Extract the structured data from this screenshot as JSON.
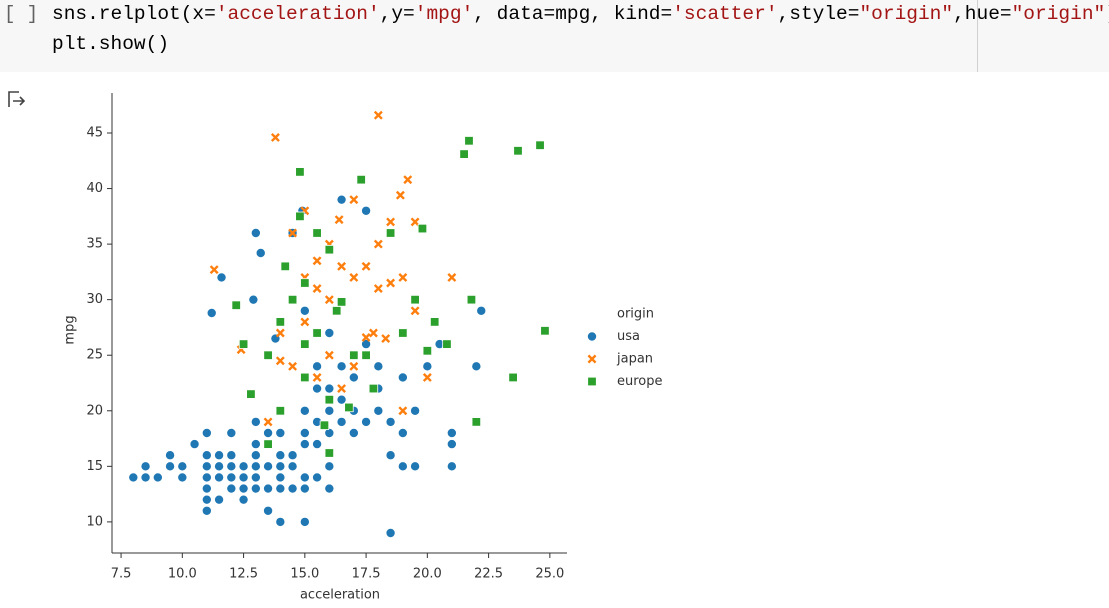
{
  "cell": {
    "prompt": "[ ]",
    "code": [
      [
        {
          "text": "sns.relplot(x=",
          "color": "#000000"
        },
        {
          "text": "'acceleration'",
          "color": "#a31515"
        },
        {
          "text": ",y=",
          "color": "#000000"
        },
        {
          "text": "'mpg'",
          "color": "#a31515"
        },
        {
          "text": ", data=mpg, kind=",
          "color": "#000000"
        },
        {
          "text": "'scatter'",
          "color": "#a31515"
        },
        {
          "text": ",style=",
          "color": "#000000"
        },
        {
          "text": "\"origin\"",
          "color": "#a31515"
        },
        {
          "text": ",hue=",
          "color": "#000000"
        },
        {
          "text": "\"origin\"",
          "color": "#a31515"
        },
        {
          "text": ")",
          "color": "#000000"
        }
      ],
      [
        {
          "text": "plt.show()",
          "color": "#000000"
        }
      ]
    ]
  },
  "chart_data": {
    "type": "scatter",
    "x_label": "acceleration",
    "y_label": "mpg",
    "legend_title": "origin",
    "legend": "right",
    "xlim": [
      7.13,
      25.7
    ],
    "ylim": [
      7.2,
      48.6
    ],
    "xticks": [
      7.5,
      {
        "value": 10,
        "label": "10.0"
      },
      12.5,
      {
        "value": 15,
        "label": "15.0"
      },
      17.5,
      {
        "value": 20,
        "label": "20.0"
      },
      22.5,
      {
        "value": 25,
        "label": "25.0"
      }
    ],
    "yticks": [
      10,
      15,
      20,
      25,
      30,
      35,
      40,
      45
    ],
    "series": [
      {
        "name": "usa",
        "color": "#1f77b4",
        "marker": "circle",
        "x": [
          8,
          8.5,
          8.5,
          9,
          9.5,
          9.5,
          10,
          10,
          10.5,
          11,
          11,
          11,
          11,
          11,
          11,
          11,
          11.5,
          11.5,
          11.5,
          11.5,
          12,
          12,
          12,
          12,
          12,
          12.5,
          12.5,
          12.5,
          12.5,
          13,
          13,
          13,
          13,
          13,
          13,
          13.5,
          13.5,
          13.5,
          13.5,
          13.5,
          14,
          14,
          14,
          14,
          14,
          14,
          14.5,
          14.5,
          14.5,
          15,
          15,
          15,
          15,
          15,
          15,
          15,
          15,
          15.5,
          15.5,
          15.5,
          15.5,
          15.5,
          16,
          16,
          16,
          16,
          16,
          16,
          16.5,
          16.5,
          16.5,
          16.5,
          17,
          17,
          17,
          17,
          17.5,
          17.5,
          17.5,
          18,
          18,
          18,
          18.5,
          18.5,
          18.5,
          19,
          19,
          19,
          19.5,
          19.5,
          20,
          20.5,
          21,
          21,
          21,
          22,
          22.2,
          11.2,
          11.6,
          13,
          13.2,
          14.9,
          14.5,
          12.9,
          13.8
        ],
        "values": [
          14,
          14,
          15,
          14,
          15,
          16,
          15,
          14,
          17,
          11,
          12,
          13,
          14,
          15,
          16,
          18,
          12,
          14,
          15,
          16,
          13,
          14,
          15,
          16,
          18,
          12,
          13,
          14,
          15,
          13,
          14,
          15,
          16,
          17,
          19,
          11,
          13,
          15,
          17,
          18,
          10,
          13,
          14,
          15,
          16,
          18,
          13,
          15,
          16,
          10,
          13,
          14,
          17,
          18,
          20,
          26,
          29,
          14,
          17,
          19,
          22,
          24,
          13,
          15,
          18,
          20,
          22,
          27,
          19,
          21,
          24,
          39,
          18,
          20,
          23,
          25,
          19,
          26,
          38,
          20,
          22,
          24,
          9,
          16,
          19,
          15,
          18,
          23,
          15,
          20,
          24,
          26,
          15,
          17,
          18,
          24,
          29,
          28.8,
          32,
          36,
          34.2,
          38,
          36,
          30,
          26.5
        ]
      },
      {
        "name": "japan",
        "color": "#ff7f0e",
        "marker": "x",
        "x": [
          11.3,
          12.4,
          13.8,
          14,
          14.5,
          14.5,
          15,
          15,
          15,
          15.5,
          15.5,
          16,
          16,
          16.4,
          16.5,
          16.5,
          17,
          17,
          17,
          17.5,
          17.5,
          18,
          18,
          18,
          18.5,
          18.5,
          18.9,
          19,
          19,
          19.2,
          19.5,
          19.5,
          14,
          13.5,
          15.5,
          16,
          20,
          21,
          17.8,
          18.3
        ],
        "values": [
          32.7,
          25.5,
          44.6,
          27,
          24,
          36,
          38,
          32,
          28,
          33.5,
          31,
          35,
          30,
          37.2,
          33,
          22,
          39,
          32,
          24,
          33,
          26.6,
          46.6,
          35,
          31,
          31.5,
          37,
          39.4,
          32,
          20,
          40.8,
          29,
          37,
          24.5,
          19,
          23,
          25,
          23,
          32,
          27,
          26.5
        ]
      },
      {
        "name": "europe",
        "color": "#2ca02c",
        "marker": "square",
        "x": [
          12.2,
          12.5,
          12.8,
          13.5,
          13.5,
          14,
          14,
          14.2,
          14.5,
          14.8,
          14.8,
          15,
          15,
          15,
          15.5,
          15.5,
          16,
          16,
          16,
          16.3,
          16.5,
          16.8,
          17,
          17.3,
          17.5,
          17.8,
          18.5,
          19,
          19.5,
          19.8,
          20,
          20.3,
          20.8,
          21.5,
          21.7,
          21.8,
          22,
          23.5,
          23.7,
          24.6,
          24.8,
          15.8
        ],
        "values": [
          29.5,
          26,
          21.5,
          25,
          17,
          20,
          28,
          33,
          30,
          41.5,
          37.5,
          31.5,
          26,
          23,
          36,
          27,
          34.5,
          21,
          16.2,
          29,
          29.8,
          20.3,
          25,
          40.8,
          25,
          22,
          36,
          27,
          30,
          36.4,
          25.4,
          28,
          26,
          43.1,
          44.3,
          30,
          19,
          23,
          43.4,
          43.9,
          27.2,
          18.7
        ]
      }
    ]
  }
}
